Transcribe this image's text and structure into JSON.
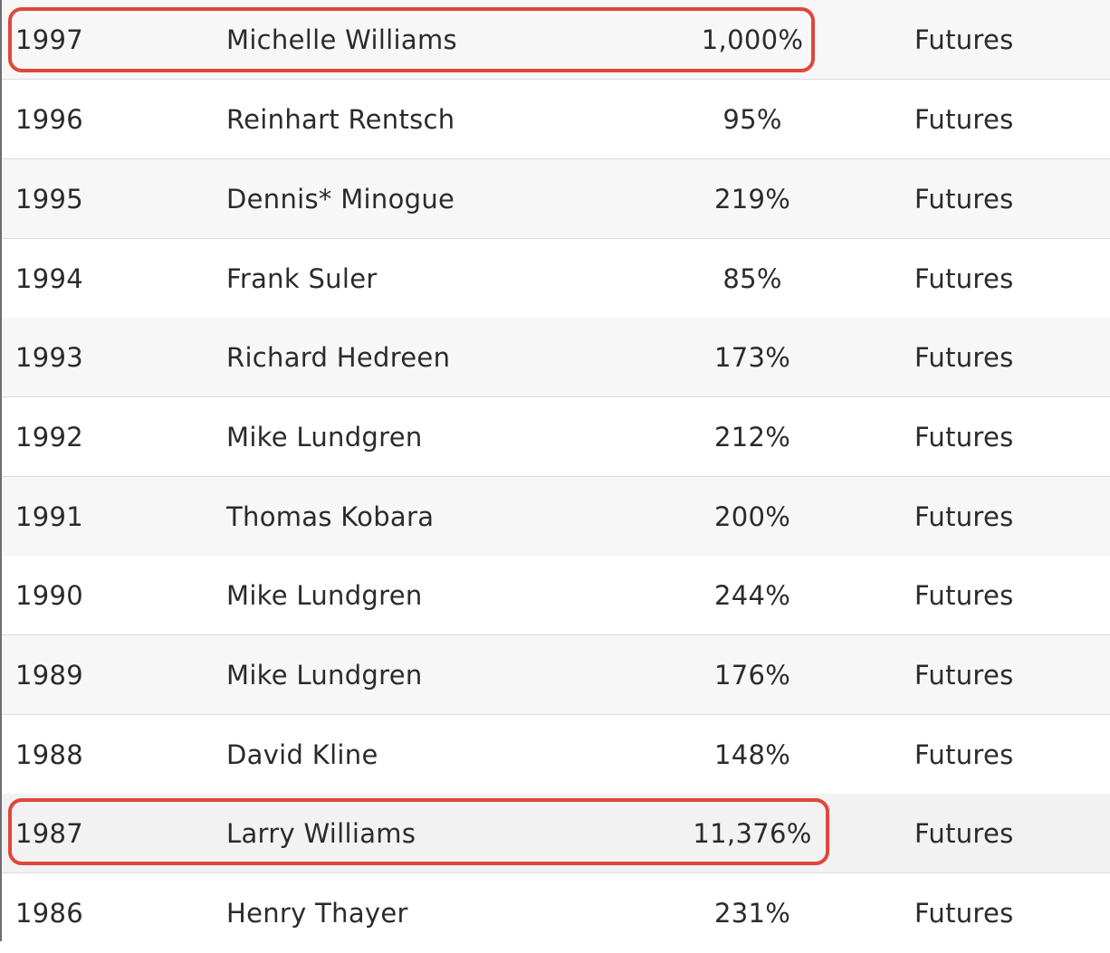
{
  "table": {
    "rows": [
      {
        "year": "1997",
        "name": "Michelle Williams",
        "return": "1,000%",
        "category": "Futures",
        "highlighted": true
      },
      {
        "year": "1996",
        "name": "Reinhart Rentsch",
        "return": "95%",
        "category": "Futures",
        "highlighted": false
      },
      {
        "year": "1995",
        "name": "Dennis* Minogue",
        "return": "219%",
        "category": "Futures",
        "highlighted": false
      },
      {
        "year": "1994",
        "name": "Frank Suler",
        "return": "85%",
        "category": "Futures",
        "highlighted": false
      },
      {
        "year": "1993",
        "name": "Richard Hedreen",
        "return": "173%",
        "category": "Futures",
        "highlighted": false
      },
      {
        "year": "1992",
        "name": "Mike Lundgren",
        "return": "212%",
        "category": "Futures",
        "highlighted": false
      },
      {
        "year": "1991",
        "name": "Thomas Kobara",
        "return": "200%",
        "category": "Futures",
        "highlighted": false
      },
      {
        "year": "1990",
        "name": "Mike Lundgren",
        "return": "244%",
        "category": "Futures",
        "highlighted": false
      },
      {
        "year": "1989",
        "name": "Mike Lundgren",
        "return": "176%",
        "category": "Futures",
        "highlighted": false
      },
      {
        "year": "1988",
        "name": "David Kline",
        "return": "148%",
        "category": "Futures",
        "highlighted": false
      },
      {
        "year": "1987",
        "name": "Larry Williams",
        "return": "11,376%",
        "category": "Futures",
        "highlighted": true
      },
      {
        "year": "1986",
        "name": "Henry Thayer",
        "return": "231%",
        "category": "Futures",
        "highlighted": false
      }
    ]
  },
  "colors": {
    "highlight_border": "#e0463b",
    "row_stripe": "#f7f7f7",
    "row_plain": "#ffffff",
    "row_divider": "#dcdcdc",
    "text": "#2b2b2b"
  }
}
